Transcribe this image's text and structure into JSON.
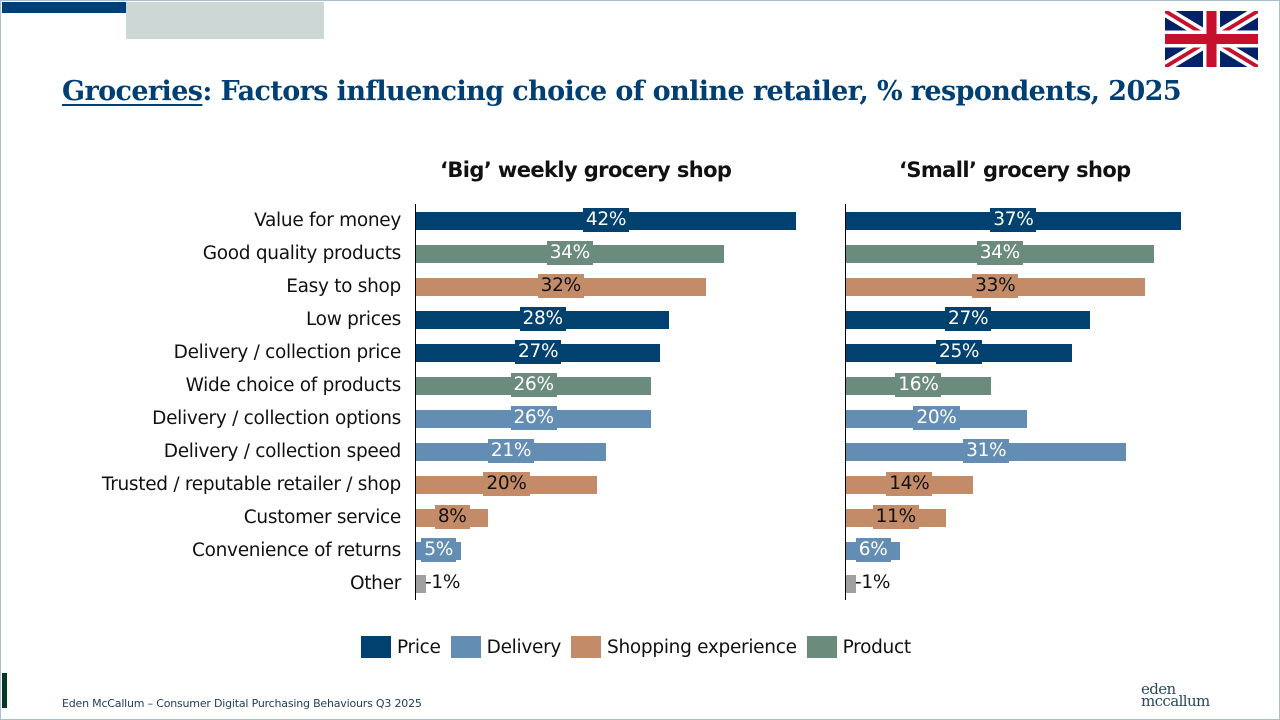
{
  "header": {
    "title_underlined": "Groceries",
    "title_rest": ": Factors influencing choice of online retailer, % respondents, 2025",
    "flag_icon": "uk-flag-icon"
  },
  "footer": {
    "source": "Eden McCallum – Consumer Digital Purchasing Behaviours Q3 2025",
    "logo_line1": "eden",
    "logo_line2": "mccallum"
  },
  "colors": {
    "Price": "#00416f",
    "Delivery": "#638db3",
    "Shopping experience": "#c48b68",
    "Product": "#6b8c7c",
    "Other": "#a0a0a0"
  },
  "chart_data": {
    "type": "bar",
    "orientation": "horizontal",
    "title": "Groceries: Factors influencing choice of online retailer, % respondents, 2025",
    "unit": "%",
    "categories": [
      "Value for money",
      "Good quality products",
      "Easy to shop",
      "Low prices",
      "Delivery / collection price",
      "Wide choice of products",
      "Delivery / collection options",
      "Delivery / collection speed",
      "Trusted / reputable retailer / shop",
      "Customer service",
      "Convenience of returns",
      "Other"
    ],
    "category_group": [
      "Price",
      "Product",
      "Shopping experience",
      "Price",
      "Price",
      "Product",
      "Delivery",
      "Delivery",
      "Shopping experience",
      "Shopping experience",
      "Delivery",
      "Other"
    ],
    "panels": [
      {
        "name": "‘Big’ weekly grocery shop",
        "values": [
          42,
          34,
          32,
          28,
          27,
          26,
          26,
          21,
          20,
          8,
          5,
          1
        ]
      },
      {
        "name": "‘Small’ grocery shop",
        "values": [
          37,
          34,
          33,
          27,
          25,
          16,
          20,
          31,
          14,
          11,
          6,
          1
        ]
      }
    ],
    "legend": [
      "Price",
      "Delivery",
      "Shopping experience",
      "Product"
    ],
    "legend_position": "bottom",
    "xlim": [
      0,
      45
    ],
    "grid": false
  }
}
